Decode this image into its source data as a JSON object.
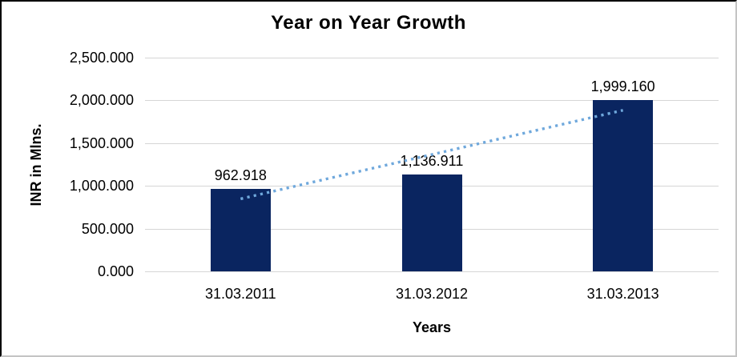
{
  "chart_data": {
    "type": "bar",
    "title": "Year on Year Growth",
    "xlabel": "Years",
    "ylabel": "INR in Mlns.",
    "categories": [
      "31.03.2011",
      "31.03.2012",
      "31.03.2013"
    ],
    "values": [
      962.918,
      1136.911,
      1999.16
    ],
    "value_labels": [
      "962.918",
      "1,136.911",
      "1,999.160"
    ],
    "ylim": [
      0,
      2500
    ],
    "yticks": [
      0,
      500,
      1000,
      1500,
      2000,
      2500
    ],
    "ytick_labels": [
      "0.000",
      "500.000",
      "1,000.000",
      "1,500.000",
      "2,000.000",
      "2,500.000"
    ],
    "grid": true,
    "legend_position": "none",
    "bar_color": "#0a2560",
    "gridline_color": "#d6d6d6",
    "trendline": {
      "type": "linear",
      "style": "dotted",
      "color": "#6fa8dc",
      "start_value": 848.21,
      "end_value": 1884.45
    }
  }
}
